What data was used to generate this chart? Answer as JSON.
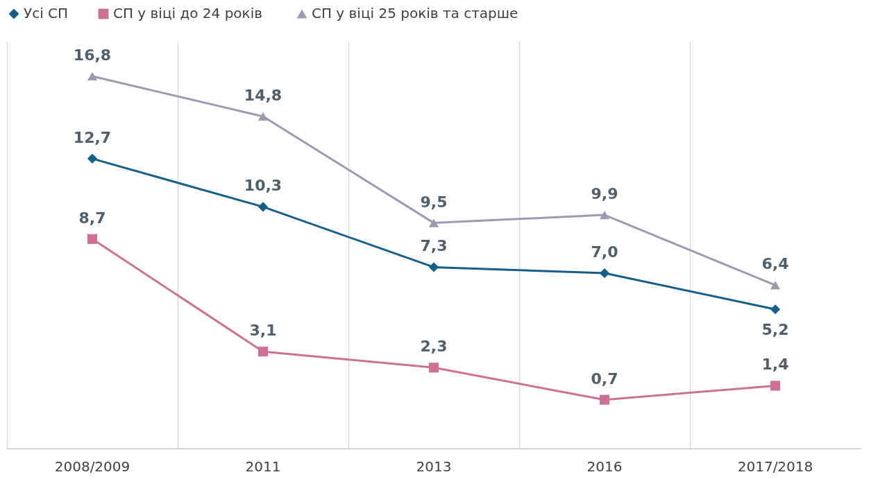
{
  "chart_data": {
    "type": "line",
    "categories": [
      "2008/2009",
      "2011",
      "2013",
      "2016",
      "2017/2018"
    ],
    "series": [
      {
        "name": "Усі СП",
        "color": "#135f8a",
        "marker": "diamond",
        "values": [
          12.7,
          10.3,
          7.3,
          7.0,
          5.2
        ],
        "value_labels": [
          "12,7",
          "10,3",
          "7,3",
          "7,0",
          "5,2"
        ]
      },
      {
        "name": "СП  у віці до 24 років",
        "color": "#cc7096",
        "marker": "square",
        "values": [
          8.7,
          3.1,
          2.3,
          0.7,
          1.4
        ],
        "value_labels": [
          "8,7",
          "3,1",
          "2,3",
          "0,7",
          "1,4"
        ]
      },
      {
        "name": "СП  у віці 25 років та старше",
        "color": "#9a9ab0",
        "marker": "triangle",
        "values": [
          16.8,
          14.8,
          9.5,
          9.9,
          6.4
        ],
        "value_labels": [
          "16,8",
          "14,8",
          "9,5",
          "9,9",
          "6,4"
        ]
      }
    ],
    "tick_labels": "x",
    "grid": "x",
    "legend": "top"
  }
}
